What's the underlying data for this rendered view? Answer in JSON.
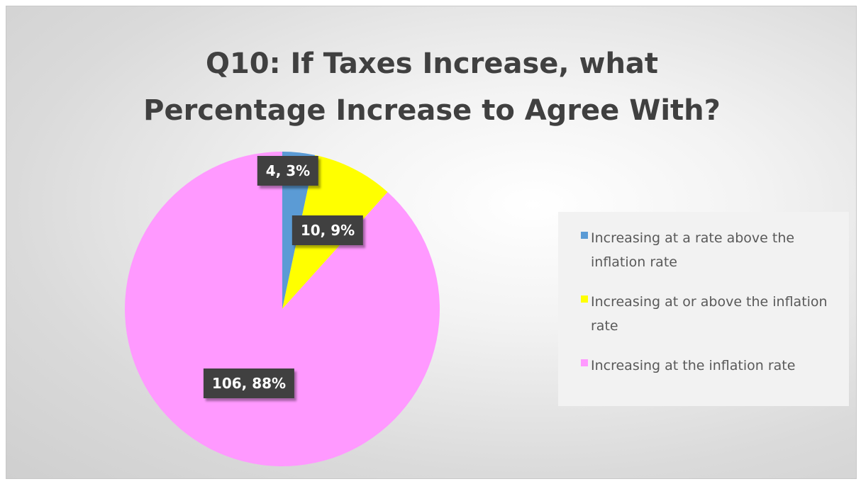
{
  "chart_data": {
    "type": "pie",
    "title": "Q10: If Taxes Increase, what Percentage Increase to Agree With?",
    "title_lines": [
      "Q10: If Taxes Increase, what",
      "Percentage Increase to Agree With?"
    ],
    "legend_position": "right",
    "slices": [
      {
        "name": "Increasing at a rate above the inflation rate",
        "value": 4,
        "percent": 3,
        "label": "4, 3%",
        "color": "#5b9bd5"
      },
      {
        "name": "Increasing at or above the inflation rate",
        "value": 10,
        "percent": 9,
        "label": "10, 9%",
        "color": "#ffff00"
      },
      {
        "name": "Increasing at the inflation rate",
        "value": 106,
        "percent": 88,
        "label": "106, 88%",
        "color": "#ff99ff"
      }
    ]
  }
}
